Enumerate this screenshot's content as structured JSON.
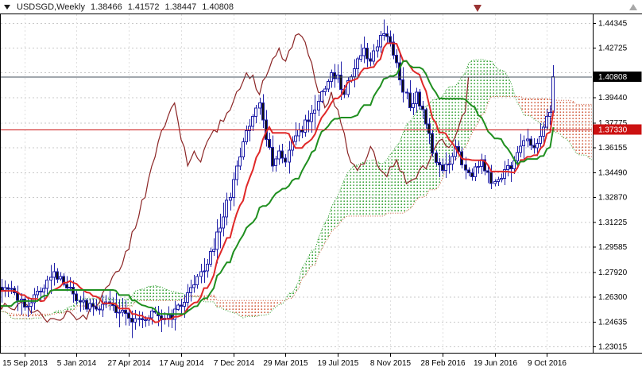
{
  "header": {
    "symbol": "USDSGD,Weekly",
    "open": "1.38466",
    "high": "1.41572",
    "low": "1.38447",
    "close": "1.40808"
  },
  "colors": {
    "bg": "#ffffff",
    "grid_h": "#c9c9c9",
    "grid_v": "#e0e0e0",
    "border": "#000000",
    "candle_border": "#2020a8",
    "candle_up_fill": "#ffffff",
    "candle_down_fill": "#101010",
    "tenkan": "#e02828",
    "kijun": "#1f8f1f",
    "chikou": "#8b2525",
    "senkou_a": "#30a030",
    "senkou_b": "#d05a3a",
    "cloud_up_dot": "#30a030",
    "cloud_dn_dot": "#d05a3a",
    "axis_text": "#000000",
    "current_line": "#44525e",
    "current_box_bg": "#000000",
    "current_box_text": "#ffffff",
    "hline": "#cc1111",
    "hline_box_bg": "#cc1111",
    "hline_box_text": "#ffffff",
    "shift_marker": "#993333",
    "scale_marker": "#a8a8a8"
  },
  "y_axis": {
    "ticks": [
      {
        "label": "1.44345",
        "price": 1.44345
      },
      {
        "label": "1.42725",
        "price": 1.42725
      },
      {
        "label": "",
        "price": 1.41105
      },
      {
        "label": "1.39440",
        "price": 1.3944
      },
      {
        "label": "1.37775",
        "price": 1.37775
      },
      {
        "label": "1.36155",
        "price": 1.36155
      },
      {
        "label": "1.34490",
        "price": 1.3449
      },
      {
        "label": "1.32870",
        "price": 1.3287
      },
      {
        "label": "1.31225",
        "price": 1.31225
      },
      {
        "label": "1.29585",
        "price": 1.29585
      },
      {
        "label": "1.27920",
        "price": 1.2792
      },
      {
        "label": "1.26300",
        "price": 1.263
      },
      {
        "label": "1.24635",
        "price": 1.24635
      },
      {
        "label": "1.23015",
        "price": 1.23015
      }
    ]
  },
  "x_axis": {
    "ticks": [
      {
        "label": "15 Sep 2013",
        "week": 6
      },
      {
        "label": "5 Jan 2014",
        "week": 22
      },
      {
        "label": "27 Apr 2014",
        "week": 38
      },
      {
        "label": "17 Aug 2014",
        "week": 54
      },
      {
        "label": "7 Dec 2014",
        "week": 70
      },
      {
        "label": "29 Mar 2015",
        "week": 86
      },
      {
        "label": "19 Jul 2015",
        "week": 102
      },
      {
        "label": "8 Nov 2015",
        "week": 118
      },
      {
        "label": "28 Feb 2016",
        "week": 134
      },
      {
        "label": "19 Jun 2016",
        "week": 150
      },
      {
        "label": "9 Oct 2016",
        "week": 166
      }
    ]
  },
  "price_lines": [
    {
      "name": "current-price",
      "label": "1.40808",
      "price": 1.40808
    },
    {
      "name": "red-horizontal-line",
      "label": "1.37330",
      "price": 1.3733
    }
  ],
  "chart_data": {
    "type": "candlestick",
    "symbol": "USDSGD",
    "timeframe": "Weekly",
    "title": "USDSGD,Weekly",
    "y_range": [
      1.226,
      1.4498
    ],
    "week_start": -80,
    "week_end": 168,
    "wiggle": 0.0032,
    "close_anchors": [
      [
        -80,
        1.248
      ],
      [
        -72,
        1.256
      ],
      [
        -64,
        1.252
      ],
      [
        -56,
        1.246
      ],
      [
        -48,
        1.25
      ],
      [
        -40,
        1.258
      ],
      [
        -32,
        1.25
      ],
      [
        -24,
        1.244
      ],
      [
        -16,
        1.25
      ],
      [
        -8,
        1.262
      ],
      [
        -4,
        1.268
      ],
      [
        0,
        1.271
      ],
      [
        3,
        1.265
      ],
      [
        6,
        1.258
      ],
      [
        9,
        1.263
      ],
      [
        12,
        1.27
      ],
      [
        15,
        1.277
      ],
      [
        18,
        1.273
      ],
      [
        21,
        1.265
      ],
      [
        24,
        1.259
      ],
      [
        27,
        1.2545
      ],
      [
        30,
        1.259
      ],
      [
        33,
        1.255
      ],
      [
        36,
        1.251
      ],
      [
        39,
        1.2465
      ],
      [
        42,
        1.2495
      ],
      [
        45,
        1.2525
      ],
      [
        48,
        1.246
      ],
      [
        51,
        1.2505
      ],
      [
        54,
        1.258
      ],
      [
        57,
        1.267
      ],
      [
        60,
        1.279
      ],
      [
        63,
        1.291
      ],
      [
        66,
        1.309
      ],
      [
        69,
        1.331
      ],
      [
        72,
        1.354
      ],
      [
        74,
        1.371
      ],
      [
        76,
        1.385
      ],
      [
        78,
        1.389
      ],
      [
        80,
        1.368
      ],
      [
        82,
        1.352
      ],
      [
        84,
        1.357
      ],
      [
        86,
        1.3525
      ],
      [
        88,
        1.3625
      ],
      [
        90,
        1.371
      ],
      [
        92,
        1.3785
      ],
      [
        94,
        1.3845
      ],
      [
        96,
        1.3925
      ],
      [
        98,
        1.4025
      ],
      [
        100,
        1.4105
      ],
      [
        102,
        1.406
      ],
      [
        104,
        1.3985
      ],
      [
        106,
        1.4105
      ],
      [
        108,
        1.4205
      ],
      [
        110,
        1.4245
      ],
      [
        112,
        1.4155
      ],
      [
        114,
        1.4285
      ],
      [
        116,
        1.437
      ],
      [
        118,
        1.4295
      ],
      [
        120,
        1.4175
      ],
      [
        122,
        1.3995
      ],
      [
        124,
        1.39
      ],
      [
        126,
        1.397
      ],
      [
        128,
        1.3845
      ],
      [
        130,
        1.3675
      ],
      [
        132,
        1.354
      ],
      [
        134,
        1.346
      ],
      [
        136,
        1.3535
      ],
      [
        138,
        1.3605
      ],
      [
        140,
        1.351
      ],
      [
        142,
        1.3425
      ],
      [
        144,
        1.3475
      ],
      [
        146,
        1.3525
      ],
      [
        148,
        1.343
      ],
      [
        150,
        1.337
      ],
      [
        152,
        1.3415
      ],
      [
        154,
        1.3475
      ],
      [
        156,
        1.3535
      ],
      [
        158,
        1.3605
      ],
      [
        160,
        1.3695
      ],
      [
        162,
        1.362
      ],
      [
        164,
        1.3715
      ],
      [
        166,
        1.3805
      ],
      [
        167,
        1.38466
      ],
      [
        168,
        1.40808
      ]
    ],
    "last_candle": {
      "open": 1.38466,
      "high": 1.41572,
      "low": 1.38447,
      "close": 1.40808
    },
    "indicators": {
      "ichimoku": {
        "tenkan": 9,
        "kijun": 26,
        "senkou_b": 52,
        "shift": 26
      },
      "horizontal_lines": [
        1.40808,
        1.3733
      ]
    }
  }
}
